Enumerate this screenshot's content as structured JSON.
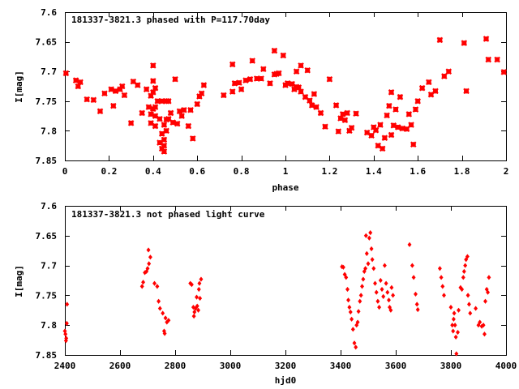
{
  "chart_data": [
    {
      "type": "scatter",
      "title": "181337-3821.3 phased with P=117.70day",
      "xlabel": "phase",
      "ylabel": "I[mag]",
      "xlim": [
        0,
        2
      ],
      "ylim": [
        7.6,
        7.85
      ],
      "y_inverted": true,
      "x_ticks": [
        "0",
        "0.2",
        "0.4",
        "0.6",
        "0.8",
        "1",
        "1.2",
        "1.4",
        "1.6",
        "1.8",
        "2"
      ],
      "y_ticks": [
        "7.6",
        "7.65",
        "7.7",
        "7.75",
        "7.8",
        "7.85"
      ],
      "grid": false,
      "marker": "star",
      "color": "#ff0000",
      "points": [
        [
          0.005,
          7.703
        ],
        [
          0.05,
          7.715
        ],
        [
          0.07,
          7.718
        ],
        [
          0.06,
          7.725
        ],
        [
          0.1,
          7.747
        ],
        [
          0.13,
          7.748
        ],
        [
          0.16,
          7.767
        ],
        [
          0.18,
          7.737
        ],
        [
          0.21,
          7.73
        ],
        [
          0.22,
          7.758
        ],
        [
          0.23,
          7.733
        ],
        [
          0.25,
          7.73
        ],
        [
          0.26,
          7.725
        ],
        [
          0.27,
          7.74
        ],
        [
          0.3,
          7.787
        ],
        [
          0.31,
          7.717
        ],
        [
          0.33,
          7.723
        ],
        [
          0.35,
          7.77
        ],
        [
          0.37,
          7.73
        ],
        [
          0.38,
          7.76
        ],
        [
          0.39,
          7.741
        ],
        [
          0.39,
          7.772
        ],
        [
          0.39,
          7.787
        ],
        [
          0.4,
          7.716
        ],
        [
          0.4,
          7.735
        ],
        [
          0.4,
          7.763
        ],
        [
          0.4,
          7.69
        ],
        [
          0.41,
          7.728
        ],
        [
          0.41,
          7.76
        ],
        [
          0.41,
          7.775
        ],
        [
          0.41,
          7.792
        ],
        [
          0.42,
          7.75
        ],
        [
          0.43,
          7.78
        ],
        [
          0.43,
          7.82
        ],
        [
          0.44,
          7.75
        ],
        [
          0.44,
          7.805
        ],
        [
          0.44,
          7.83
        ],
        [
          0.45,
          7.79
        ],
        [
          0.45,
          7.815
        ],
        [
          0.45,
          7.825
        ],
        [
          0.45,
          7.835
        ],
        [
          0.46,
          7.75
        ],
        [
          0.46,
          7.781
        ],
        [
          0.46,
          7.8
        ],
        [
          0.47,
          7.75
        ],
        [
          0.47,
          7.78
        ],
        [
          0.48,
          7.77
        ],
        [
          0.49,
          7.786
        ],
        [
          0.5,
          7.713
        ],
        [
          0.51,
          7.788
        ],
        [
          0.52,
          7.767
        ],
        [
          0.53,
          7.775
        ],
        [
          0.54,
          7.765
        ],
        [
          0.56,
          7.792
        ],
        [
          0.57,
          7.765
        ],
        [
          0.58,
          7.813
        ],
        [
          0.6,
          7.755
        ],
        [
          0.61,
          7.742
        ],
        [
          0.62,
          7.737
        ],
        [
          0.63,
          7.723
        ],
        [
          0.72,
          7.74
        ],
        [
          0.76,
          7.734
        ],
        [
          0.76,
          7.688
        ],
        [
          0.77,
          7.72
        ],
        [
          0.79,
          7.719
        ],
        [
          0.8,
          7.73
        ],
        [
          0.82,
          7.715
        ],
        [
          0.84,
          7.713
        ],
        [
          0.85,
          7.682
        ],
        [
          0.87,
          7.712
        ],
        [
          0.89,
          7.712
        ],
        [
          0.9,
          7.696
        ],
        [
          0.93,
          7.72
        ],
        [
          0.95,
          7.705
        ],
        [
          0.95,
          7.665
        ],
        [
          0.96,
          7.704
        ],
        [
          0.97,
          7.703
        ],
        [
          0.99,
          7.673
        ],
        [
          1.0,
          7.723
        ],
        [
          1.01,
          7.72
        ],
        [
          1.03,
          7.721
        ],
        [
          1.04,
          7.73
        ],
        [
          1.05,
          7.726
        ],
        [
          1.05,
          7.7
        ],
        [
          1.06,
          7.727
        ],
        [
          1.07,
          7.734
        ],
        [
          1.07,
          7.69
        ],
        [
          1.09,
          7.743
        ],
        [
          1.1,
          7.698
        ],
        [
          1.11,
          7.749
        ],
        [
          1.12,
          7.757
        ],
        [
          1.13,
          7.738
        ],
        [
          1.14,
          7.76
        ],
        [
          1.16,
          7.77
        ],
        [
          1.18,
          7.793
        ],
        [
          1.2,
          7.713
        ],
        [
          1.23,
          7.757
        ],
        [
          1.24,
          7.801
        ],
        [
          1.25,
          7.779
        ],
        [
          1.26,
          7.772
        ],
        [
          1.27,
          7.782
        ],
        [
          1.28,
          7.77
        ],
        [
          1.29,
          7.8
        ],
        [
          1.3,
          7.795
        ],
        [
          1.32,
          7.771
        ],
        [
          1.37,
          7.803
        ],
        [
          1.39,
          7.808
        ],
        [
          1.4,
          7.794
        ],
        [
          1.41,
          7.799
        ],
        [
          1.42,
          7.825
        ],
        [
          1.43,
          7.79
        ],
        [
          1.44,
          7.83
        ],
        [
          1.45,
          7.812
        ],
        [
          1.46,
          7.774
        ],
        [
          1.47,
          7.758
        ],
        [
          1.48,
          7.807
        ],
        [
          1.48,
          7.735
        ],
        [
          1.49,
          7.791
        ],
        [
          1.5,
          7.764
        ],
        [
          1.51,
          7.794
        ],
        [
          1.52,
          7.743
        ],
        [
          1.53,
          7.796
        ],
        [
          1.55,
          7.797
        ],
        [
          1.56,
          7.772
        ],
        [
          1.57,
          7.79
        ],
        [
          1.58,
          7.823
        ],
        [
          1.59,
          7.764
        ],
        [
          1.6,
          7.75
        ],
        [
          1.62,
          7.728
        ],
        [
          1.65,
          7.718
        ],
        [
          1.66,
          7.739
        ],
        [
          1.68,
          7.733
        ],
        [
          1.7,
          7.647
        ],
        [
          1.72,
          7.708
        ],
        [
          1.74,
          7.7
        ],
        [
          1.81,
          7.652
        ],
        [
          1.82,
          7.733
        ],
        [
          1.91,
          7.645
        ],
        [
          1.92,
          7.68
        ],
        [
          1.96,
          7.68
        ],
        [
          1.99,
          7.701
        ]
      ]
    },
    {
      "type": "scatter",
      "title": "181337-3821.3 not phased light curve",
      "xlabel": "hjd0",
      "ylabel": "I[mag]",
      "xlim": [
        2400,
        4000
      ],
      "ylim": [
        7.6,
        7.85
      ],
      "y_inverted": true,
      "x_ticks": [
        "2400",
        "2600",
        "2800",
        "3000",
        "3200",
        "3400",
        "3600",
        "3800",
        "4000"
      ],
      "y_ticks": [
        "7.6",
        "7.65",
        "7.7",
        "7.75",
        "7.8",
        "7.85"
      ],
      "grid": false,
      "marker": "diamond",
      "color": "#ff0000",
      "points": [
        [
          2400,
          7.81
        ],
        [
          2402,
          7.815
        ],
        [
          2405,
          7.822
        ],
        [
          2407,
          7.797
        ],
        [
          2408,
          7.765
        ],
        [
          2404,
          7.826
        ],
        [
          2680,
          7.735
        ],
        [
          2684,
          7.728
        ],
        [
          2690,
          7.712
        ],
        [
          2696,
          7.71
        ],
        [
          2700,
          7.705
        ],
        [
          2705,
          7.697
        ],
        [
          2703,
          7.674
        ],
        [
          2710,
          7.686
        ],
        [
          2725,
          7.73
        ],
        [
          2735,
          7.735
        ],
        [
          2740,
          7.76
        ],
        [
          2745,
          7.772
        ],
        [
          2755,
          7.78
        ],
        [
          2760,
          7.81
        ],
        [
          2762,
          7.814
        ],
        [
          2765,
          7.788
        ],
        [
          2770,
          7.795
        ],
        [
          2776,
          7.792
        ],
        [
          2855,
          7.73
        ],
        [
          2860,
          7.732
        ],
        [
          2866,
          7.77
        ],
        [
          2868,
          7.785
        ],
        [
          2870,
          7.778
        ],
        [
          2874,
          7.772
        ],
        [
          2878,
          7.753
        ],
        [
          2880,
          7.768
        ],
        [
          2884,
          7.775
        ],
        [
          2886,
          7.74
        ],
        [
          2888,
          7.73
        ],
        [
          2890,
          7.755
        ],
        [
          2894,
          7.723
        ],
        [
          3405,
          7.702
        ],
        [
          3410,
          7.703
        ],
        [
          3415,
          7.715
        ],
        [
          3420,
          7.72
        ],
        [
          3425,
          7.74
        ],
        [
          3428,
          7.758
        ],
        [
          3432,
          7.77
        ],
        [
          3436,
          7.778
        ],
        [
          3440,
          7.79
        ],
        [
          3445,
          7.807
        ],
        [
          3450,
          7.83
        ],
        [
          3455,
          7.837
        ],
        [
          3458,
          7.8
        ],
        [
          3462,
          7.795
        ],
        [
          3465,
          7.777
        ],
        [
          3470,
          7.76
        ],
        [
          3474,
          7.75
        ],
        [
          3478,
          7.735
        ],
        [
          3482,
          7.723
        ],
        [
          3486,
          7.71
        ],
        [
          3490,
          7.705
        ],
        [
          3492,
          7.65
        ],
        [
          3495,
          7.68
        ],
        [
          3500,
          7.697
        ],
        [
          3504,
          7.654
        ],
        [
          3508,
          7.645
        ],
        [
          3512,
          7.672
        ],
        [
          3515,
          7.69
        ],
        [
          3520,
          7.705
        ],
        [
          3525,
          7.73
        ],
        [
          3530,
          7.745
        ],
        [
          3535,
          7.76
        ],
        [
          3540,
          7.77
        ],
        [
          3545,
          7.725
        ],
        [
          3550,
          7.74
        ],
        [
          3555,
          7.752
        ],
        [
          3560,
          7.7
        ],
        [
          3565,
          7.73
        ],
        [
          3570,
          7.745
        ],
        [
          3575,
          7.758
        ],
        [
          3578,
          7.77
        ],
        [
          3582,
          7.775
        ],
        [
          3585,
          7.737
        ],
        [
          3590,
          7.75
        ],
        [
          3650,
          7.665
        ],
        [
          3660,
          7.7
        ],
        [
          3665,
          7.72
        ],
        [
          3672,
          7.748
        ],
        [
          3677,
          7.765
        ],
        [
          3680,
          7.774
        ],
        [
          3760,
          7.705
        ],
        [
          3765,
          7.72
        ],
        [
          3770,
          7.735
        ],
        [
          3775,
          7.75
        ],
        [
          3800,
          7.77
        ],
        [
          3805,
          7.8
        ],
        [
          3808,
          7.81
        ],
        [
          3810,
          7.79
        ],
        [
          3812,
          7.78
        ],
        [
          3815,
          7.8
        ],
        [
          3818,
          7.82
        ],
        [
          3820,
          7.848
        ],
        [
          3825,
          7.812
        ],
        [
          3828,
          7.775
        ],
        [
          3835,
          7.737
        ],
        [
          3840,
          7.74
        ],
        [
          3845,
          7.72
        ],
        [
          3848,
          7.71
        ],
        [
          3852,
          7.7
        ],
        [
          3855,
          7.69
        ],
        [
          3860,
          7.685
        ],
        [
          3862,
          7.75
        ],
        [
          3866,
          7.765
        ],
        [
          3870,
          7.78
        ],
        [
          3890,
          7.772
        ],
        [
          3900,
          7.8
        ],
        [
          3905,
          7.795
        ],
        [
          3912,
          7.802
        ],
        [
          3918,
          7.8
        ],
        [
          3922,
          7.815
        ],
        [
          3925,
          7.76
        ],
        [
          3930,
          7.74
        ],
        [
          3934,
          7.745
        ],
        [
          3938,
          7.72
        ]
      ]
    }
  ]
}
